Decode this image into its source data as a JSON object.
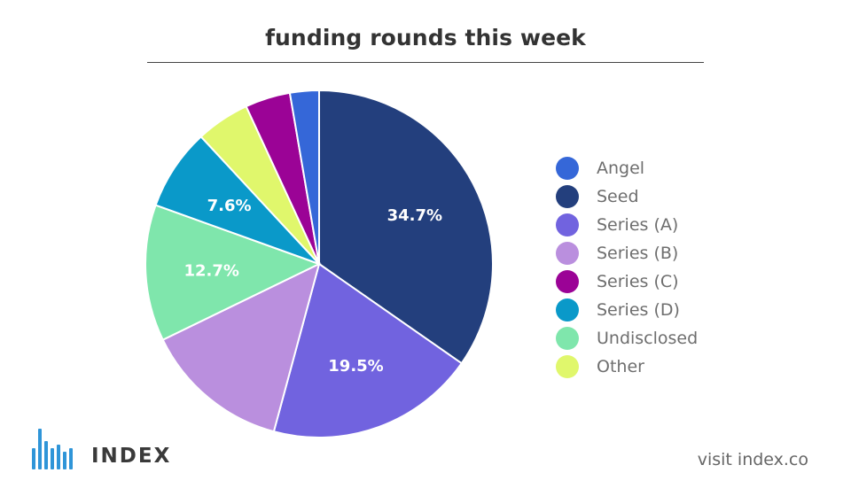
{
  "title": "funding rounds this week",
  "chart_data": {
    "type": "pie",
    "title": "funding rounds this week",
    "slices": [
      {
        "label": "Seed",
        "value": 34.7,
        "color": "#233f7d",
        "data_label": "34.7%"
      },
      {
        "label": "Series (A)",
        "value": 19.5,
        "color": "#7163df",
        "data_label": "19.5%"
      },
      {
        "label": "Series (B)",
        "value": 13.6,
        "color": "#ba8fde",
        "data_label": ""
      },
      {
        "label": "Undisclosed",
        "value": 12.7,
        "color": "#7fe6ac",
        "data_label": "12.7%"
      },
      {
        "label": "Series (D)",
        "value": 7.6,
        "color": "#0a99c9",
        "data_label": "7.6%"
      },
      {
        "label": "Other",
        "value": 5.0,
        "color": "#e0f76c",
        "data_label": ""
      },
      {
        "label": "Series (C)",
        "value": 4.2,
        "color": "#9b0396",
        "data_label": ""
      },
      {
        "label": "Angel",
        "value": 2.7,
        "color": "#3567d8",
        "data_label": ""
      }
    ],
    "legend_placement": "right",
    "legend": [
      {
        "label": "Angel",
        "color": "#3567d8"
      },
      {
        "label": "Seed",
        "color": "#233f7d"
      },
      {
        "label": "Series (A)",
        "color": "#7163df"
      },
      {
        "label": "Series (B)",
        "color": "#ba8fde"
      },
      {
        "label": "Series (C)",
        "color": "#9b0396"
      },
      {
        "label": "Series (D)",
        "color": "#0a99c9"
      },
      {
        "label": "Undisclosed",
        "color": "#7fe6ac"
      },
      {
        "label": "Other",
        "color": "#e0f76c"
      }
    ]
  },
  "branding": {
    "logo_text": "INDEX",
    "logo_color": "#2f95d8",
    "footer_text": "visit index.co"
  }
}
